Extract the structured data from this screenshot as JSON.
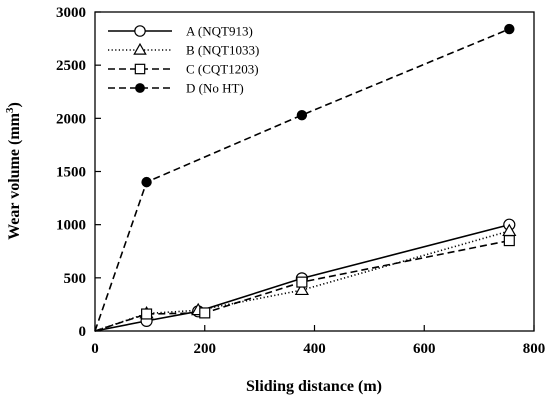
{
  "chart_data": {
    "type": "line",
    "title": "",
    "xlabel": "Sliding distance (m)",
    "ylabel_main": "Wear volume (mm",
    "ylabel_sup": "3",
    "ylabel_close": ")",
    "xlim": [
      0,
      800
    ],
    "ylim": [
      0,
      3000
    ],
    "xticks": [
      0,
      200,
      400,
      600,
      800
    ],
    "yticks": [
      0,
      500,
      1000,
      1500,
      2000,
      2500,
      3000
    ],
    "grid": false,
    "legend_position": "top-left",
    "series": [
      {
        "name": "A (NQT913)",
        "line": "solid",
        "marker": "circle-open",
        "points": [
          [
            0,
            0
          ],
          [
            94,
            95
          ],
          [
            188,
            185
          ],
          [
            377,
            495
          ],
          [
            755,
            1000
          ]
        ]
      },
      {
        "name": "B (NQT1033)",
        "line": "dotted",
        "marker": "triangle-open",
        "points": [
          [
            0,
            0
          ],
          [
            94,
            165
          ],
          [
            188,
            195
          ],
          [
            377,
            385
          ],
          [
            755,
            940
          ]
        ]
      },
      {
        "name": "C (CQT1203)",
        "line": "dashed",
        "marker": "square-open",
        "points": [
          [
            0,
            0
          ],
          [
            94,
            160
          ],
          [
            200,
            170
          ],
          [
            377,
            460
          ],
          [
            755,
            850
          ]
        ]
      },
      {
        "name": "D (No HT)",
        "line": "dashed",
        "marker": "circle-filled",
        "points": [
          [
            0,
            0
          ],
          [
            94,
            1400
          ],
          [
            377,
            2030
          ],
          [
            755,
            2840
          ]
        ]
      }
    ]
  }
}
